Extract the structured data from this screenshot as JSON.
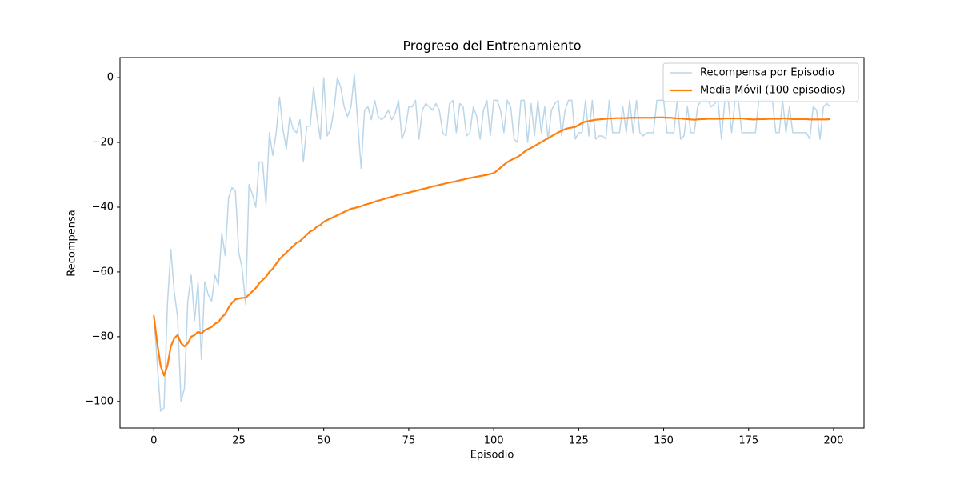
{
  "chart_data": {
    "type": "line",
    "title": "Progreso del Entrenamiento",
    "xlabel": "Episodio",
    "ylabel": "Recompensa",
    "xlim": [
      -9.95,
      208.95
    ],
    "ylim": [
      -108.2,
      6.2
    ],
    "xticks": [
      0,
      25,
      50,
      75,
      100,
      125,
      150,
      175,
      200
    ],
    "yticks": [
      {
        "value": -100,
        "label": "−100"
      },
      {
        "value": -80,
        "label": "−80"
      },
      {
        "value": -60,
        "label": "−60"
      },
      {
        "value": -40,
        "label": "−40"
      },
      {
        "value": -20,
        "label": "−20"
      },
      0
    ],
    "legend": "upper right",
    "x": [
      0,
      1,
      2,
      3,
      4,
      5,
      6,
      7,
      8,
      9,
      10,
      11,
      12,
      13,
      14,
      15,
      16,
      17,
      18,
      19,
      20,
      21,
      22,
      23,
      24,
      25,
      26,
      27,
      28,
      29,
      30,
      31,
      32,
      33,
      34,
      35,
      36,
      37,
      38,
      39,
      40,
      41,
      42,
      43,
      44,
      45,
      46,
      47,
      48,
      49,
      50,
      51,
      52,
      53,
      54,
      55,
      56,
      57,
      58,
      59,
      60,
      61,
      62,
      63,
      64,
      65,
      66,
      67,
      68,
      69,
      70,
      71,
      72,
      73,
      74,
      75,
      76,
      77,
      78,
      79,
      80,
      81,
      82,
      83,
      84,
      85,
      86,
      87,
      88,
      89,
      90,
      91,
      92,
      93,
      94,
      95,
      96,
      97,
      98,
      99,
      100,
      101,
      102,
      103,
      104,
      105,
      106,
      107,
      108,
      109,
      110,
      111,
      112,
      113,
      114,
      115,
      116,
      117,
      118,
      119,
      120,
      121,
      122,
      123,
      124,
      125,
      126,
      127,
      128,
      129,
      130,
      131,
      132,
      133,
      134,
      135,
      136,
      137,
      138,
      139,
      140,
      141,
      142,
      143,
      144,
      145,
      146,
      147,
      148,
      149,
      150,
      151,
      152,
      153,
      154,
      155,
      156,
      157,
      158,
      159,
      160,
      161,
      162,
      163,
      164,
      165,
      166,
      167,
      168,
      169,
      170,
      171,
      172,
      173,
      174,
      175,
      176,
      177,
      178,
      179,
      180,
      181,
      182,
      183,
      184,
      185,
      186,
      187,
      188,
      189,
      190,
      191,
      192,
      193,
      194,
      195,
      196,
      197,
      198,
      199
    ],
    "series": [
      {
        "name": "Recompensa por Episodio",
        "color": "#1f77b4",
        "opacity": 0.3,
        "width": 1.5,
        "values": [
          -73,
          -88,
          -103,
          -102,
          -70,
          -53,
          -66,
          -74,
          -100,
          -96,
          -69,
          -61,
          -75,
          -63,
          -87,
          -63,
          -67,
          -69,
          -61,
          -64,
          -48,
          -55,
          -37,
          -34,
          -35,
          -54,
          -59,
          -70,
          -33,
          -36,
          -40,
          -26,
          -26,
          -39,
          -17,
          -24,
          -17,
          -6,
          -16,
          -22,
          -12,
          -16,
          -17,
          -13,
          -26,
          -15,
          -15,
          -3,
          -12,
          -19,
          0,
          -18,
          -16,
          -10,
          0,
          -3,
          -9,
          -12,
          -9,
          1,
          -14,
          -28,
          -10,
          -9,
          -13,
          -7,
          -12,
          -13,
          -12,
          -10,
          -13,
          -11,
          -7,
          -19,
          -16,
          -9,
          -9,
          -7,
          -19,
          -10,
          -8,
          -9,
          -10,
          -8,
          -10,
          -17,
          -18,
          -8,
          -7,
          -17,
          -8,
          -9,
          -18,
          -17,
          -9,
          -12,
          -19,
          -10,
          -7,
          -18,
          -7,
          -7,
          -10,
          -17,
          -7,
          -9,
          -19,
          -20,
          -7,
          -7,
          -20,
          -8,
          -18,
          -7,
          -17,
          -9,
          -19,
          -10,
          -8,
          -7,
          -18,
          -10,
          -7,
          -7,
          -19,
          -17,
          -17,
          -7,
          -18,
          -7,
          -19,
          -18,
          -18,
          -19,
          -7,
          -17,
          -17,
          -17,
          -9,
          -17,
          -7,
          -17,
          -7,
          -17,
          -18,
          -17,
          -17,
          -17,
          -7,
          -7,
          -7,
          -17,
          -17,
          -17,
          -7,
          -19,
          -18,
          -9,
          -17,
          -17,
          -9,
          -7,
          -7,
          -7,
          -9,
          -8,
          -7,
          -19,
          -7,
          -7,
          -17,
          -7,
          -7,
          -17,
          -17,
          -17,
          -17,
          -17,
          -7,
          -7,
          -7,
          -7,
          -7,
          -17,
          -17,
          -7,
          -17,
          -9,
          -17,
          -17,
          -17,
          -17,
          -17,
          -19,
          -9,
          -10,
          -19,
          -9,
          -8,
          -9
        ]
      },
      {
        "name": "Media Móvil (100 episodios)",
        "color": "#ff7f0e",
        "opacity": 1,
        "width": 2.2,
        "values": [
          -73.5,
          -82,
          -89,
          -92,
          -89,
          -83,
          -80.5,
          -79.5,
          -82,
          -83,
          -82,
          -80,
          -79.5,
          -78.5,
          -79,
          -78,
          -77.5,
          -77,
          -76,
          -75.5,
          -74,
          -73,
          -71,
          -69.5,
          -68.5,
          -68.2,
          -68,
          -68,
          -67,
          -66,
          -65,
          -63.5,
          -62.5,
          -61.5,
          -60,
          -59,
          -57.5,
          -56,
          -55,
          -54,
          -53,
          -52,
          -51,
          -50.5,
          -49.5,
          -48.5,
          -47.5,
          -47,
          -46,
          -45.5,
          -44.5,
          -44,
          -43.5,
          -43,
          -42.5,
          -42,
          -41.5,
          -41,
          -40.5,
          -40.3,
          -40,
          -39.7,
          -39.3,
          -39,
          -38.7,
          -38.3,
          -38,
          -37.7,
          -37.4,
          -37.1,
          -36.8,
          -36.5,
          -36.2,
          -36,
          -35.7,
          -35.5,
          -35.2,
          -35,
          -34.7,
          -34.4,
          -34.2,
          -33.9,
          -33.6,
          -33.4,
          -33.1,
          -32.9,
          -32.6,
          -32.4,
          -32.2,
          -32,
          -31.7,
          -31.5,
          -31.2,
          -31,
          -30.8,
          -30.6,
          -30.4,
          -30.2,
          -30,
          -29.7,
          -29.5,
          -28.7,
          -27.8,
          -26.9,
          -26.1,
          -25.5,
          -25,
          -24.5,
          -23.8,
          -22.9,
          -22.2,
          -21.7,
          -21.1,
          -20.5,
          -19.9,
          -19.3,
          -18.7,
          -18.1,
          -17.5,
          -16.9,
          -16.4,
          -15.9,
          -15.6,
          -15.4,
          -15.2,
          -14.6,
          -14,
          -13.6,
          -13.4,
          -13.2,
          -13,
          -12.9,
          -12.8,
          -12.7,
          -12.6,
          -12.6,
          -12.5,
          -12.5,
          -12.5,
          -12.5,
          -12.4,
          -12.4,
          -12.4,
          -12.4,
          -12.4,
          -12.4,
          -12.4,
          -12.4,
          -12.3,
          -12.3,
          -12.3,
          -12.4,
          -12.4,
          -12.5,
          -12.6,
          -12.6,
          -12.7,
          -12.8,
          -12.9,
          -13,
          -12.9,
          -12.8,
          -12.8,
          -12.7,
          -12.7,
          -12.7,
          -12.7,
          -12.7,
          -12.6,
          -12.6,
          -12.6,
          -12.6,
          -12.6,
          -12.6,
          -12.7,
          -12.8,
          -12.9,
          -12.9,
          -12.8,
          -12.8,
          -12.8,
          -12.7,
          -12.7,
          -12.7,
          -12.7,
          -12.6,
          -12.6,
          -12.7,
          -12.8,
          -12.8,
          -12.8,
          -12.8,
          -12.8,
          -12.9,
          -12.9,
          -12.9,
          -12.9,
          -12.9,
          -12.9,
          -12.8
        ]
      }
    ]
  }
}
